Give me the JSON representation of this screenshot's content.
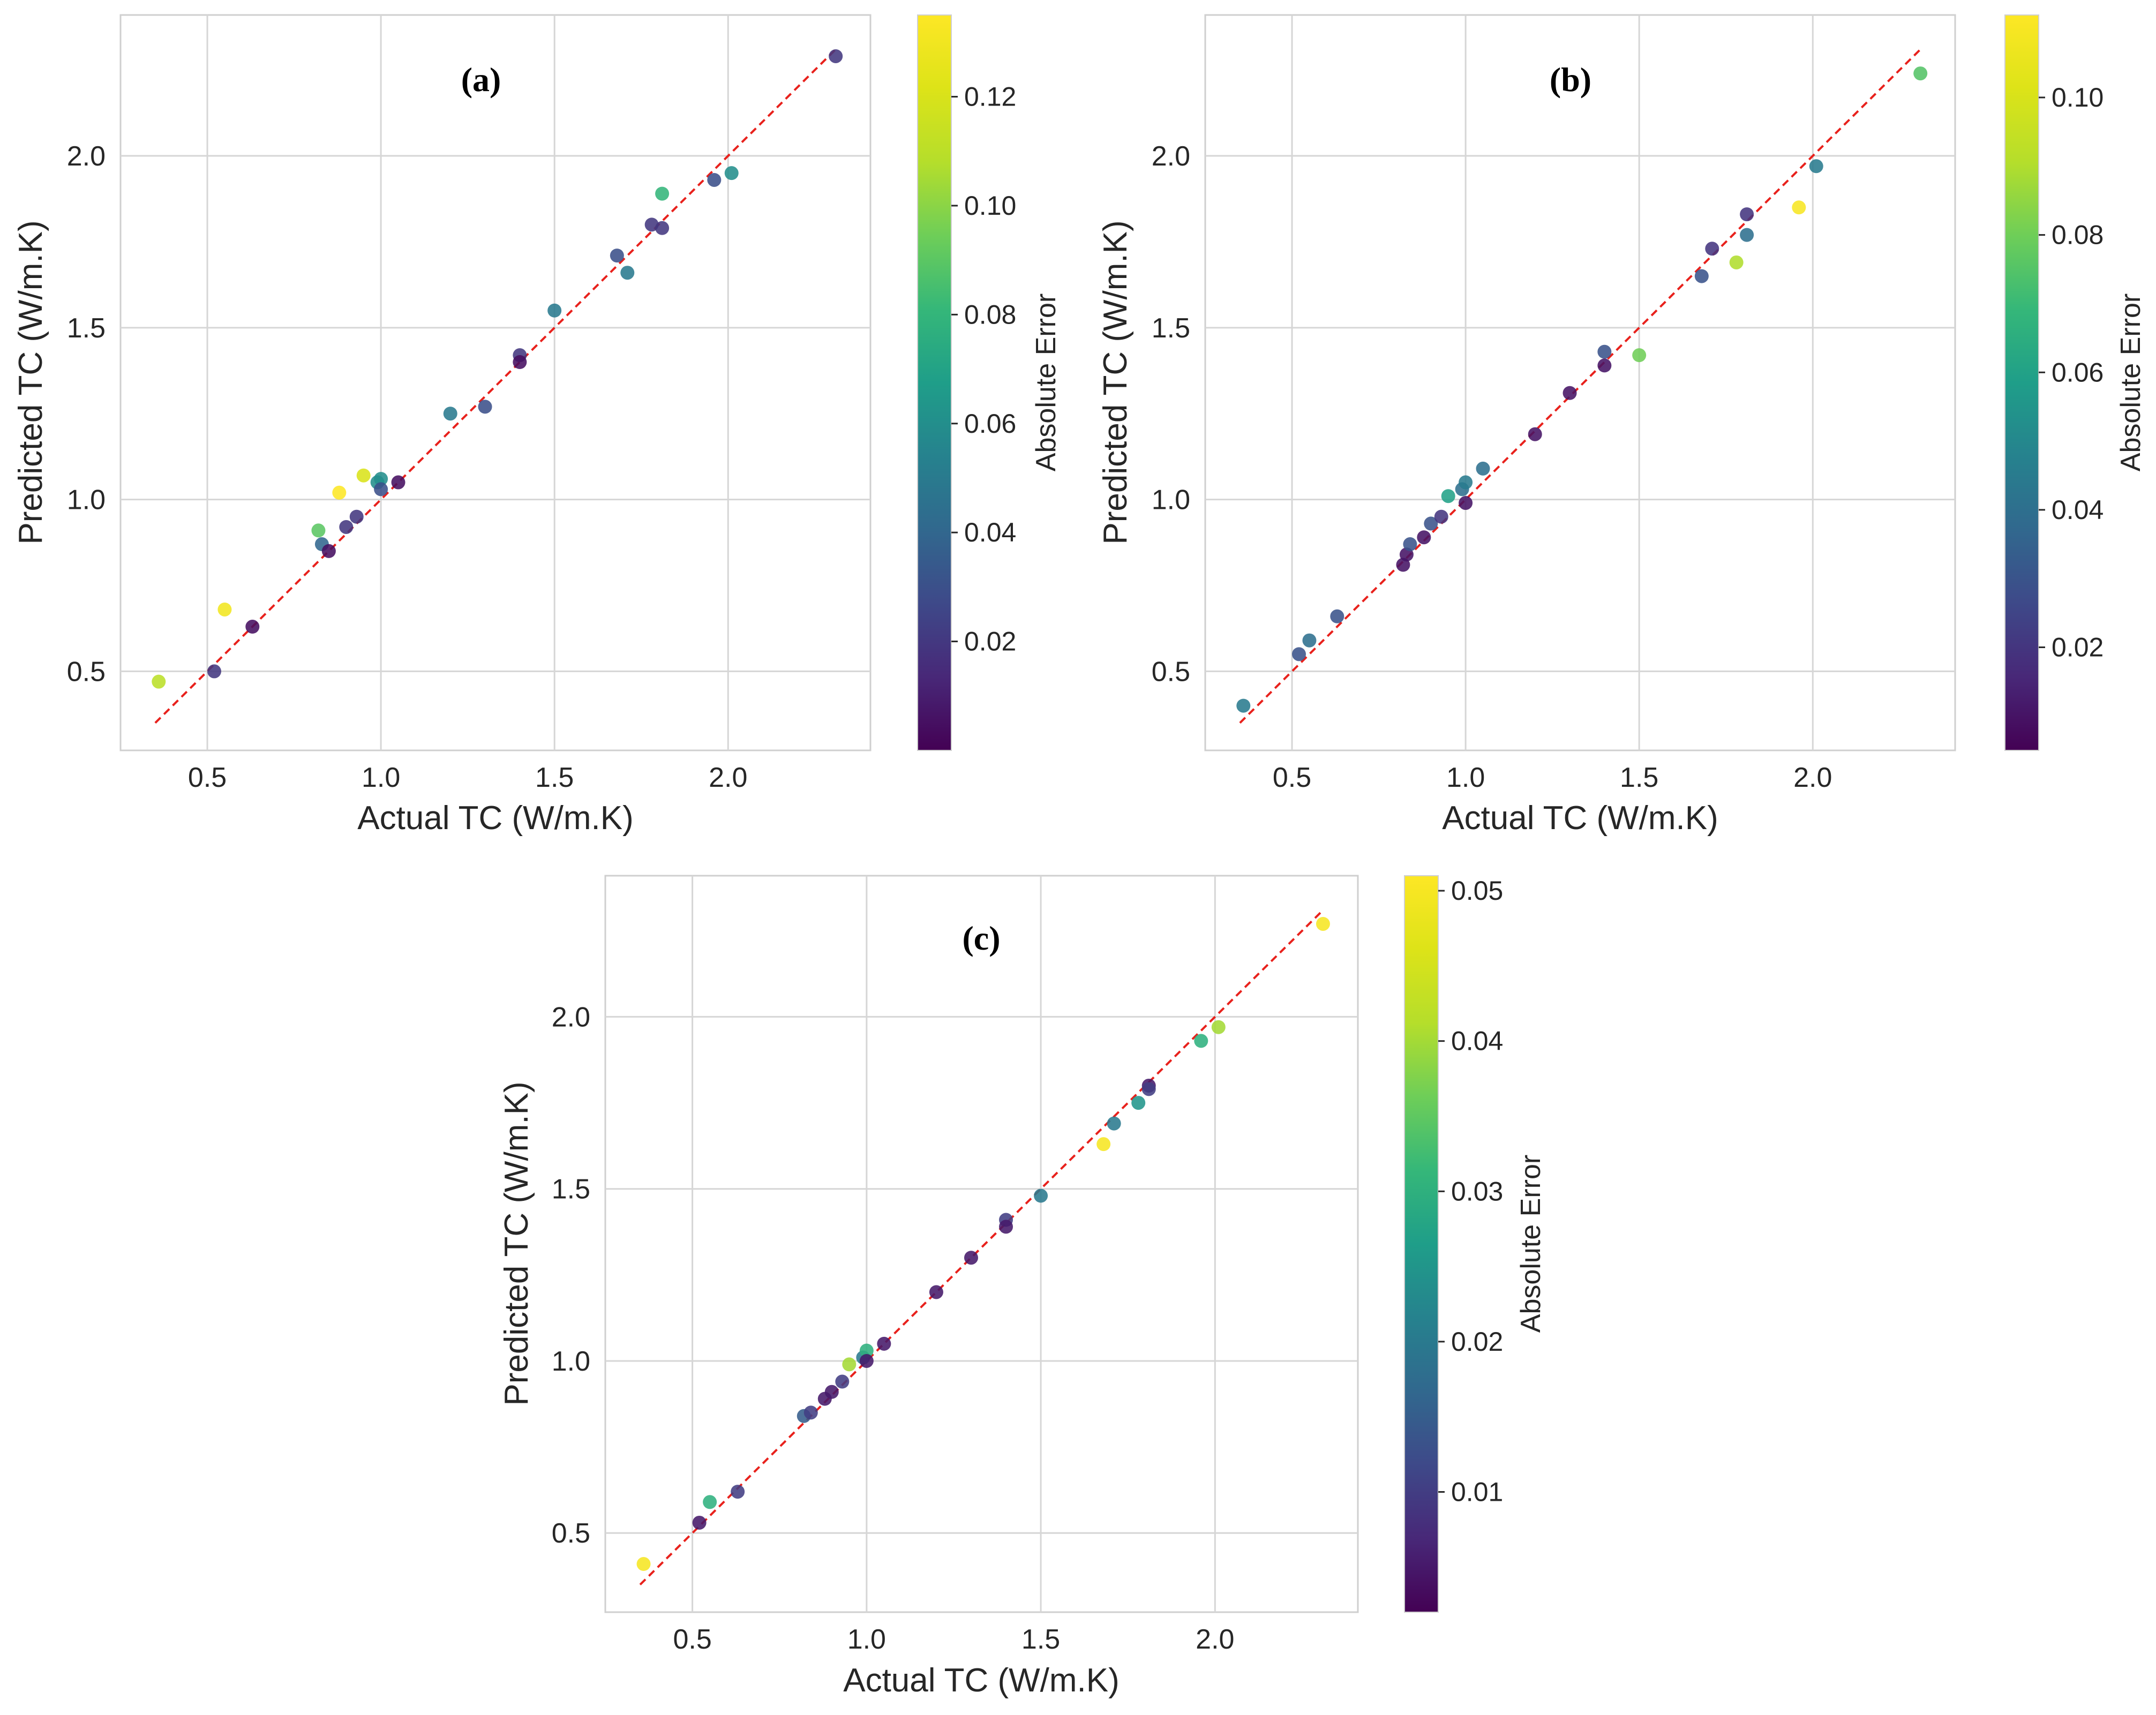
{
  "figure": {
    "description_label": "Actual vs predicted thermal conductivity for three models"
  },
  "chart_data": [
    {
      "type": "scatter",
      "panel_label": "(a)",
      "xlabel": "Actual TC (W/m.K)",
      "ylabel": "Predicted TC (W/m.K)",
      "xlim": [
        0.25,
        2.41
      ],
      "ylim": [
        0.27,
        2.41
      ],
      "xticks": [
        0.5,
        1.0,
        1.5,
        2.0
      ],
      "yticks": [
        0.5,
        1.0,
        1.5,
        2.0
      ],
      "tick_labels_x": [
        "0.5",
        "1.0",
        "1.5",
        "2.0"
      ],
      "tick_labels_y": [
        "0.5",
        "1.0",
        "1.5",
        "2.0"
      ],
      "grid": true,
      "reference_line": {
        "style": "dashed",
        "color": "#e8211c",
        "from": [
          0.35,
          0.35
        ],
        "to": [
          2.31,
          2.31
        ]
      },
      "colorbar": {
        "label": "Absolute Error",
        "cmap": "viridis",
        "vmin": 0.0,
        "vmax": 0.135,
        "ticks": [
          0.02,
          0.04,
          0.06,
          0.08,
          0.1,
          0.12
        ],
        "tick_labels": [
          "0.02",
          "0.04",
          "0.06",
          "0.08",
          "0.10",
          "0.12"
        ]
      },
      "points": [
        {
          "x": 0.36,
          "y": 0.47,
          "err": 0.11
        },
        {
          "x": 0.52,
          "y": 0.5,
          "err": 0.02
        },
        {
          "x": 0.55,
          "y": 0.68,
          "err": 0.13
        },
        {
          "x": 0.63,
          "y": 0.63,
          "err": 0.005
        },
        {
          "x": 0.82,
          "y": 0.91,
          "err": 0.09
        },
        {
          "x": 0.83,
          "y": 0.87,
          "err": 0.04
        },
        {
          "x": 0.85,
          "y": 0.85,
          "err": 0.005
        },
        {
          "x": 0.88,
          "y": 1.02,
          "err": 0.135
        },
        {
          "x": 0.9,
          "y": 0.92,
          "err": 0.02
        },
        {
          "x": 0.93,
          "y": 0.95,
          "err": 0.02
        },
        {
          "x": 0.95,
          "y": 1.07,
          "err": 0.12
        },
        {
          "x": 0.99,
          "y": 1.05,
          "err": 0.06
        },
        {
          "x": 1.0,
          "y": 1.06,
          "err": 0.06
        },
        {
          "x": 1.0,
          "y": 1.03,
          "err": 0.03
        },
        {
          "x": 1.05,
          "y": 1.05,
          "err": 0.005
        },
        {
          "x": 1.2,
          "y": 1.25,
          "err": 0.05
        },
        {
          "x": 1.3,
          "y": 1.27,
          "err": 0.03
        },
        {
          "x": 1.4,
          "y": 1.42,
          "err": 0.02
        },
        {
          "x": 1.4,
          "y": 1.4,
          "err": 0.005
        },
        {
          "x": 1.5,
          "y": 1.55,
          "err": 0.05
        },
        {
          "x": 1.68,
          "y": 1.71,
          "err": 0.03
        },
        {
          "x": 1.71,
          "y": 1.66,
          "err": 0.05
        },
        {
          "x": 1.78,
          "y": 1.8,
          "err": 0.02
        },
        {
          "x": 1.81,
          "y": 1.79,
          "err": 0.02
        },
        {
          "x": 1.81,
          "y": 1.89,
          "err": 0.08
        },
        {
          "x": 1.96,
          "y": 1.93,
          "err": 0.03
        },
        {
          "x": 2.01,
          "y": 1.95,
          "err": 0.06
        },
        {
          "x": 2.31,
          "y": 2.29,
          "err": 0.02
        }
      ]
    },
    {
      "type": "scatter",
      "panel_label": "(b)",
      "xlabel": "Actual TC (W/m.K)",
      "ylabel": "Predicted TC (W/m.K)",
      "xlim": [
        0.25,
        2.41
      ],
      "ylim": [
        0.27,
        2.41
      ],
      "xticks": [
        0.5,
        1.0,
        1.5,
        2.0
      ],
      "yticks": [
        0.5,
        1.0,
        1.5,
        2.0
      ],
      "tick_labels_x": [
        "0.5",
        "1.0",
        "1.5",
        "2.0"
      ],
      "tick_labels_y": [
        "0.5",
        "1.0",
        "1.5",
        "2.0"
      ],
      "grid": true,
      "reference_line": {
        "style": "dashed",
        "color": "#e8211c",
        "from": [
          0.35,
          0.35
        ],
        "to": [
          2.31,
          2.31
        ]
      },
      "colorbar": {
        "label": "Absolute Error",
        "cmap": "viridis",
        "vmin": 0.005,
        "vmax": 0.112,
        "ticks": [
          0.02,
          0.04,
          0.06,
          0.08,
          0.1
        ],
        "tick_labels": [
          "0.02",
          "0.04",
          "0.06",
          "0.08",
          "0.10"
        ]
      },
      "points": [
        {
          "x": 0.36,
          "y": 0.4,
          "err": 0.045
        },
        {
          "x": 0.52,
          "y": 0.55,
          "err": 0.03
        },
        {
          "x": 0.55,
          "y": 0.59,
          "err": 0.04
        },
        {
          "x": 0.63,
          "y": 0.66,
          "err": 0.03
        },
        {
          "x": 0.82,
          "y": 0.81,
          "err": 0.01
        },
        {
          "x": 0.83,
          "y": 0.84,
          "err": 0.01
        },
        {
          "x": 0.84,
          "y": 0.87,
          "err": 0.03
        },
        {
          "x": 0.88,
          "y": 0.89,
          "err": 0.01
        },
        {
          "x": 0.9,
          "y": 0.93,
          "err": 0.03
        },
        {
          "x": 0.93,
          "y": 0.95,
          "err": 0.02
        },
        {
          "x": 0.95,
          "y": 1.01,
          "err": 0.06
        },
        {
          "x": 0.99,
          "y": 1.03,
          "err": 0.04
        },
        {
          "x": 1.0,
          "y": 1.05,
          "err": 0.045
        },
        {
          "x": 1.0,
          "y": 0.99,
          "err": 0.01
        },
        {
          "x": 1.05,
          "y": 1.09,
          "err": 0.04
        },
        {
          "x": 1.2,
          "y": 1.19,
          "err": 0.01
        },
        {
          "x": 1.3,
          "y": 1.31,
          "err": 0.01
        },
        {
          "x": 1.4,
          "y": 1.43,
          "err": 0.03
        },
        {
          "x": 1.4,
          "y": 1.39,
          "err": 0.01
        },
        {
          "x": 1.5,
          "y": 1.42,
          "err": 0.08
        },
        {
          "x": 1.68,
          "y": 1.65,
          "err": 0.03
        },
        {
          "x": 1.71,
          "y": 1.73,
          "err": 0.02
        },
        {
          "x": 1.78,
          "y": 1.69,
          "err": 0.09
        },
        {
          "x": 1.81,
          "y": 1.83,
          "err": 0.02
        },
        {
          "x": 1.81,
          "y": 1.77,
          "err": 0.04
        },
        {
          "x": 1.96,
          "y": 1.85,
          "err": 0.11
        },
        {
          "x": 2.01,
          "y": 1.97,
          "err": 0.045
        },
        {
          "x": 2.31,
          "y": 2.24,
          "err": 0.075
        }
      ]
    },
    {
      "type": "scatter",
      "panel_label": "(c)",
      "xlabel": "Actual TC (W/m.K)",
      "ylabel": "Predicted TC (W/m.K)",
      "xlim": [
        0.25,
        2.41
      ],
      "ylim": [
        0.27,
        2.41
      ],
      "xticks": [
        0.5,
        1.0,
        1.5,
        2.0
      ],
      "yticks": [
        0.5,
        1.0,
        1.5,
        2.0
      ],
      "tick_labels_x": [
        "0.5",
        "1.0",
        "1.5",
        "2.0"
      ],
      "tick_labels_y": [
        "0.5",
        "1.0",
        "1.5",
        "2.0"
      ],
      "grid": true,
      "reference_line": {
        "style": "dashed",
        "color": "#e8211c",
        "from": [
          0.35,
          0.35
        ],
        "to": [
          2.31,
          2.31
        ]
      },
      "colorbar": {
        "label": "Absolute Error",
        "cmap": "viridis",
        "vmin": 0.002,
        "vmax": 0.051,
        "ticks": [
          0.01,
          0.02,
          0.03,
          0.04,
          0.05
        ],
        "tick_labels": [
          "0.01",
          "0.02",
          "0.03",
          "0.04",
          "0.05"
        ]
      },
      "points": [
        {
          "x": 0.36,
          "y": 0.41,
          "err": 0.05
        },
        {
          "x": 0.52,
          "y": 0.53,
          "err": 0.005
        },
        {
          "x": 0.55,
          "y": 0.59,
          "err": 0.03
        },
        {
          "x": 0.63,
          "y": 0.62,
          "err": 0.01
        },
        {
          "x": 0.82,
          "y": 0.84,
          "err": 0.015
        },
        {
          "x": 0.84,
          "y": 0.85,
          "err": 0.01
        },
        {
          "x": 0.88,
          "y": 0.89,
          "err": 0.005
        },
        {
          "x": 0.9,
          "y": 0.91,
          "err": 0.005
        },
        {
          "x": 0.93,
          "y": 0.94,
          "err": 0.01
        },
        {
          "x": 0.95,
          "y": 0.99,
          "err": 0.04
        },
        {
          "x": 0.99,
          "y": 1.01,
          "err": 0.02
        },
        {
          "x": 1.0,
          "y": 1.03,
          "err": 0.03
        },
        {
          "x": 1.0,
          "y": 1.0,
          "err": 0.005
        },
        {
          "x": 1.05,
          "y": 1.05,
          "err": 0.005
        },
        {
          "x": 1.2,
          "y": 1.2,
          "err": 0.005
        },
        {
          "x": 1.3,
          "y": 1.3,
          "err": 0.005
        },
        {
          "x": 1.4,
          "y": 1.41,
          "err": 0.01
        },
        {
          "x": 1.4,
          "y": 1.39,
          "err": 0.005
        },
        {
          "x": 1.5,
          "y": 1.48,
          "err": 0.02
        },
        {
          "x": 1.68,
          "y": 1.63,
          "err": 0.05
        },
        {
          "x": 1.71,
          "y": 1.69,
          "err": 0.02
        },
        {
          "x": 1.78,
          "y": 1.75,
          "err": 0.025
        },
        {
          "x": 1.81,
          "y": 1.8,
          "err": 0.005
        },
        {
          "x": 1.81,
          "y": 1.79,
          "err": 0.01
        },
        {
          "x": 1.96,
          "y": 1.93,
          "err": 0.03
        },
        {
          "x": 2.01,
          "y": 1.97,
          "err": 0.04
        },
        {
          "x": 2.31,
          "y": 2.27,
          "err": 0.05
        }
      ]
    }
  ]
}
